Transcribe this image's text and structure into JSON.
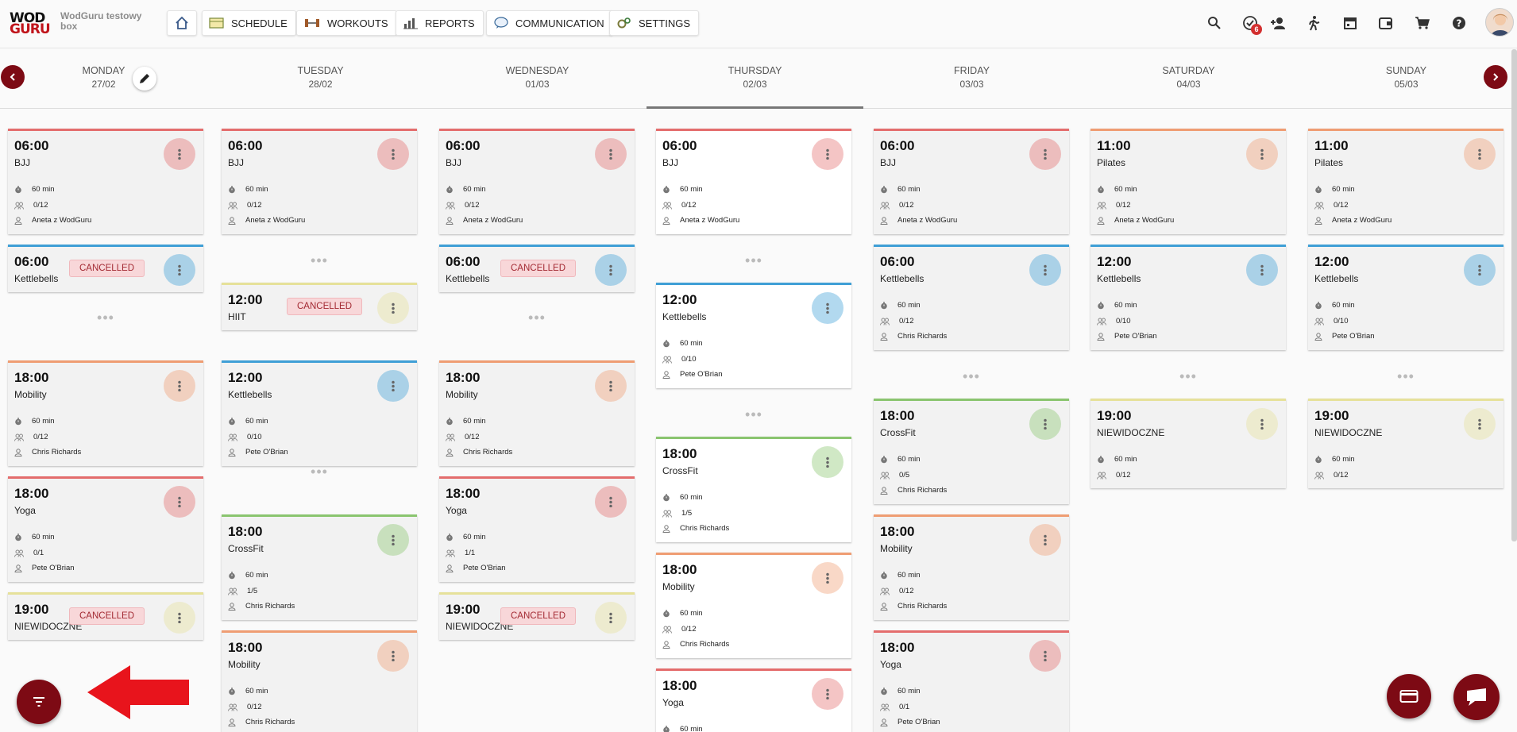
{
  "header": {
    "logo_top": "WOD",
    "logo_bottom": "GURU",
    "box_name": "WodGuru testowy box",
    "nav": [
      {
        "label": "SCHEDULE",
        "icon": "schedule-icon"
      },
      {
        "label": "WORKOUTS",
        "icon": "dumbbell-icon"
      },
      {
        "label": "REPORTS",
        "icon": "bar-chart-icon"
      },
      {
        "label": "COMMUNICATION",
        "icon": "chat-bubble-icon"
      },
      {
        "label": "SETTINGS",
        "icon": "gears-icon"
      }
    ],
    "tasks_badge": "6",
    "right_icons": [
      "search-icon",
      "tasks-icon",
      "add-person-icon",
      "activity-icon",
      "calendar-icon",
      "wallet-icon",
      "cart-icon",
      "help-icon",
      "avatar"
    ]
  },
  "days": [
    {
      "name": "MONDAY",
      "date": "27/02",
      "active": false
    },
    {
      "name": "TUESDAY",
      "date": "28/02",
      "active": false
    },
    {
      "name": "WEDNESDAY",
      "date": "01/03",
      "active": false
    },
    {
      "name": "THURSDAY",
      "date": "02/03",
      "active": true
    },
    {
      "name": "FRIDAY",
      "date": "03/03",
      "active": false
    },
    {
      "name": "SATURDAY",
      "date": "04/03",
      "active": false
    },
    {
      "name": "SUNDAY",
      "date": "05/03",
      "active": false
    }
  ],
  "cancelled_label": "CANCELLED",
  "colors": {
    "brand": "#7d0a14",
    "BJJ": "#e46d6d",
    "Yoga": "#e46d6d",
    "Kettlebells": "#3f9fd6",
    "Mobility": "#ef9d73",
    "Pilates": "#ef9d73",
    "CrossFit": "#8ac56f",
    "HIIT": "#e6e19a",
    "NIEWIDOCZNE": "#e6e19a"
  },
  "schedule": [
    {
      "day": "MONDAY",
      "classes": [
        {
          "time": "06:00",
          "name": "BJJ",
          "duration": "60 min",
          "capacity": "0/12",
          "coach": "Aneta z WodGuru"
        },
        {
          "time": "06:00",
          "name": "Kettlebells",
          "cancelled": true
        },
        {
          "time": "18:00",
          "name": "Mobility",
          "duration": "60 min",
          "capacity": "0/12",
          "coach": "Chris Richards"
        },
        {
          "time": "18:00",
          "name": "Yoga",
          "duration": "60 min",
          "capacity": "0/1",
          "coach": "Pete O'Brian"
        },
        {
          "time": "19:00",
          "name": "NIEWIDOCZNE",
          "cancelled": true
        }
      ]
    },
    {
      "day": "TUESDAY",
      "classes": [
        {
          "time": "06:00",
          "name": "BJJ",
          "duration": "60 min",
          "capacity": "0/12",
          "coach": "Aneta z WodGuru"
        },
        {
          "time": "12:00",
          "name": "HIIT",
          "cancelled": true
        },
        {
          "time": "12:00",
          "name": "Kettlebells",
          "duration": "60 min",
          "capacity": "0/10",
          "coach": "Pete O'Brian"
        },
        {
          "time": "18:00",
          "name": "CrossFit",
          "duration": "60 min",
          "capacity": "1/5",
          "coach": "Chris Richards"
        },
        {
          "time": "18:00",
          "name": "Mobility",
          "duration": "60 min",
          "capacity": "0/12",
          "coach": "Chris Richards"
        }
      ]
    },
    {
      "day": "WEDNESDAY",
      "classes": [
        {
          "time": "06:00",
          "name": "BJJ",
          "duration": "60 min",
          "capacity": "0/12",
          "coach": "Aneta z WodGuru"
        },
        {
          "time": "06:00",
          "name": "Kettlebells",
          "cancelled": true
        },
        {
          "time": "18:00",
          "name": "Mobility",
          "duration": "60 min",
          "capacity": "0/12",
          "coach": "Chris Richards"
        },
        {
          "time": "18:00",
          "name": "Yoga",
          "duration": "60 min",
          "capacity": "1/1",
          "coach": "Pete O'Brian"
        },
        {
          "time": "19:00",
          "name": "NIEWIDOCZNE",
          "cancelled": true
        }
      ]
    },
    {
      "day": "THURSDAY",
      "classes": [
        {
          "time": "06:00",
          "name": "BJJ",
          "duration": "60 min",
          "capacity": "0/12",
          "coach": "Aneta z WodGuru"
        },
        {
          "time": "12:00",
          "name": "Kettlebells",
          "duration": "60 min",
          "capacity": "0/10",
          "coach": "Pete O'Brian"
        },
        {
          "time": "18:00",
          "name": "CrossFit",
          "duration": "60 min",
          "capacity": "1/5",
          "coach": "Chris Richards"
        },
        {
          "time": "18:00",
          "name": "Mobility",
          "duration": "60 min",
          "capacity": "0/12",
          "coach": "Chris Richards"
        },
        {
          "time": "18:00",
          "name": "Yoga",
          "duration": "60 min"
        }
      ]
    },
    {
      "day": "FRIDAY",
      "classes": [
        {
          "time": "06:00",
          "name": "BJJ",
          "duration": "60 min",
          "capacity": "0/12",
          "coach": "Aneta z WodGuru"
        },
        {
          "time": "06:00",
          "name": "Kettlebells",
          "duration": "60 min",
          "capacity": "0/12",
          "coach": "Chris Richards"
        },
        {
          "time": "18:00",
          "name": "CrossFit",
          "duration": "60 min",
          "capacity": "0/5",
          "coach": "Chris Richards"
        },
        {
          "time": "18:00",
          "name": "Mobility",
          "duration": "60 min",
          "capacity": "0/12",
          "coach": "Chris Richards"
        },
        {
          "time": "18:00",
          "name": "Yoga",
          "duration": "60 min",
          "capacity": "0/1",
          "coach": "Pete O'Brian"
        }
      ]
    },
    {
      "day": "SATURDAY",
      "classes": [
        {
          "time": "11:00",
          "name": "Pilates",
          "duration": "60 min",
          "capacity": "0/12",
          "coach": "Aneta z WodGuru"
        },
        {
          "time": "12:00",
          "name": "Kettlebells",
          "duration": "60 min",
          "capacity": "0/10",
          "coach": "Pete O'Brian"
        },
        {
          "time": "19:00",
          "name": "NIEWIDOCZNE",
          "duration": "60 min",
          "capacity": "0/12"
        }
      ]
    },
    {
      "day": "SUNDAY",
      "classes": [
        {
          "time": "11:00",
          "name": "Pilates",
          "duration": "60 min",
          "capacity": "0/12",
          "coach": "Aneta z WodGuru"
        },
        {
          "time": "12:00",
          "name": "Kettlebells",
          "duration": "60 min",
          "capacity": "0/10",
          "coach": "Pete O'Brian"
        },
        {
          "time": "19:00",
          "name": "NIEWIDOCZNE",
          "duration": "60 min",
          "capacity": "0/12"
        }
      ]
    }
  ]
}
